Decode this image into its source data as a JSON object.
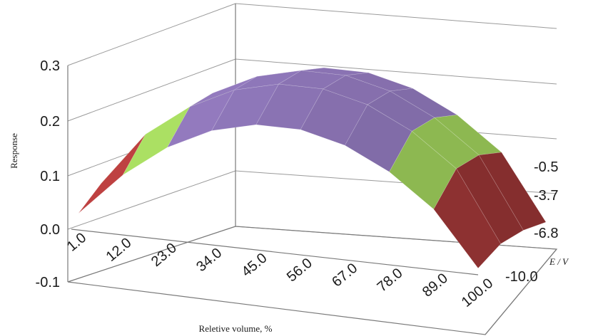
{
  "chart_data": {
    "type": "surface",
    "title": "",
    "xlabel": "Reletive volume, %",
    "ylabel": "E / V",
    "zlabel": "Response",
    "x_ticks": [
      "1.0",
      "12.0",
      "23.0",
      "34.0",
      "45.0",
      "56.0",
      "67.0",
      "78.0",
      "89.0",
      "100.0"
    ],
    "y_ticks": [
      "-0.5",
      "-3.7",
      "-6.8",
      "-10.0"
    ],
    "z_ticks": [
      "0.3",
      "0.2",
      "0.1",
      "0.0",
      "-0.1"
    ],
    "zlim": [
      -0.1,
      0.3
    ],
    "color_bands": [
      {
        "range": [
          -0.1,
          0.0
        ],
        "color": "#2e4a78"
      },
      {
        "range": [
          0.0,
          0.1
        ],
        "color": "#a83a3a"
      },
      {
        "range": [
          0.1,
          0.2
        ],
        "color": "#9ccc5a"
      },
      {
        "range": [
          0.2,
          0.3
        ],
        "color": "#8a73b3"
      }
    ],
    "z_grid": [
      [
        0.04,
        0.06,
        0.05,
        0.04
      ],
      [
        0.12,
        0.16,
        0.14,
        0.12
      ],
      [
        0.18,
        0.22,
        0.21,
        0.18
      ],
      [
        0.22,
        0.26,
        0.25,
        0.22
      ],
      [
        0.24,
        0.28,
        0.27,
        0.24
      ],
      [
        0.24,
        0.28,
        0.27,
        0.24
      ],
      [
        0.22,
        0.26,
        0.25,
        0.22
      ],
      [
        0.18,
        0.22,
        0.21,
        0.18
      ],
      [
        0.12,
        0.16,
        0.15,
        0.12
      ],
      [
        0.02,
        0.03,
        0.02,
        0.0
      ]
    ]
  }
}
